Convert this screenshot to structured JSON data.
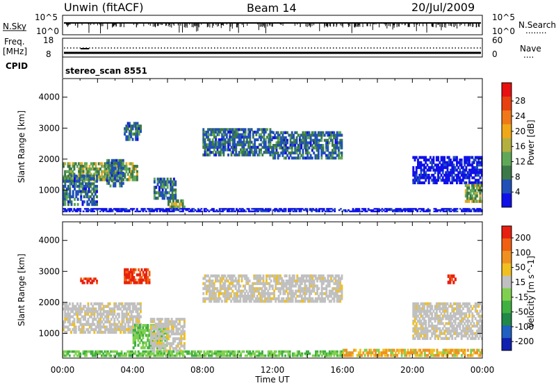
{
  "header": {
    "radar_title": "Unwin (fitACF)",
    "beam": "Beam 14",
    "date": "20/Jul/2009"
  },
  "info_panels": {
    "nsky_label": "N.Sky",
    "nsearch_label": "N.Search",
    "nsearch_marker": "........",
    "nsky_ticks": [
      "10^5",
      "10^0"
    ],
    "nsearch_ticks": [
      "10^5",
      "10^0"
    ],
    "freq_label_line1": "Freq.",
    "freq_label_line2": "[MHz]",
    "freq_ticks": [
      "18",
      "8"
    ],
    "nave_label": "Nave",
    "nave_marker": "....",
    "nave_ticks": [
      "60",
      "0"
    ],
    "cpid_label": "CPID",
    "cpid_value": "stereo_scan 8551"
  },
  "chart_data": [
    {
      "type": "heatmap",
      "panel": "power",
      "xlabel": "",
      "ylabel": "Slant Range [km]",
      "x_range_hours": [
        0,
        24
      ],
      "ylim": [
        200,
        4600
      ],
      "y_ticks": [
        1000,
        2000,
        3000,
        4000
      ],
      "grid": false,
      "colorbar": {
        "label": "Power [dB]",
        "ticks": [
          "4",
          "8",
          "12",
          "16",
          "20",
          "24",
          "28"
        ],
        "colors": [
          "#1010e8",
          "#2050b8",
          "#3c7848",
          "#60a858",
          "#b4b040",
          "#f0a818",
          "#f07818",
          "#e84010",
          "#e81010"
        ]
      },
      "bands": [
        {
          "start": 0.0,
          "end": 4.3,
          "from_km": 1300,
          "to_km": 1900,
          "level": 3
        },
        {
          "start": 0.0,
          "end": 2.0,
          "from_km": 500,
          "to_km": 1500,
          "level": 2
        },
        {
          "start": 2.5,
          "end": 3.5,
          "from_km": 1100,
          "to_km": 2000,
          "level": 2
        },
        {
          "start": 3.5,
          "end": 4.5,
          "from_km": 2600,
          "to_km": 3200,
          "level": 2
        },
        {
          "start": 5.2,
          "end": 6.5,
          "from_km": 700,
          "to_km": 1400,
          "level": 2
        },
        {
          "start": 6.0,
          "end": 7.0,
          "from_km": 400,
          "to_km": 700,
          "level": 3
        },
        {
          "start": 8.0,
          "end": 12.0,
          "from_km": 2100,
          "to_km": 3000,
          "level": 2
        },
        {
          "start": 12.0,
          "end": 16.0,
          "from_km": 2000,
          "to_km": 2900,
          "level": 2
        },
        {
          "start": 20.0,
          "end": 24.0,
          "from_km": 1200,
          "to_km": 2100,
          "level": 1
        },
        {
          "start": 23.0,
          "end": 24.0,
          "from_km": 600,
          "to_km": 1200,
          "level": 3
        },
        {
          "start": 0.0,
          "end": 24.0,
          "from_km": 300,
          "to_km": 420,
          "level": 1
        }
      ]
    },
    {
      "type": "heatmap",
      "panel": "velocity",
      "xlabel": "Time UT",
      "ylabel": "Slant Range [km]",
      "x_range_hours": [
        0,
        24
      ],
      "x_tick_labels": [
        "00:00",
        "04:00",
        "08:00",
        "12:00",
        "16:00",
        "20:00",
        "00:00"
      ],
      "ylim": [
        200,
        4600
      ],
      "y_ticks": [
        1000,
        2000,
        3000,
        4000
      ],
      "grid": false,
      "colorbar": {
        "label": "Velocity [m s^-1]",
        "ticks": [
          "200",
          "100",
          "50",
          "15",
          "-15",
          "-50",
          "-100",
          "-200"
        ],
        "colors": [
          "#1020b0",
          "#2060c0",
          "#208848",
          "#40b040",
          "#80d050",
          "#c0c0c0",
          "#f0c020",
          "#f09020",
          "#f06010",
          "#e82010"
        ]
      },
      "bands": [
        {
          "start": 0.0,
          "end": 4.5,
          "from_km": 1000,
          "to_km": 2000,
          "level": "grey"
        },
        {
          "start": 1.0,
          "end": 2.0,
          "from_km": 2600,
          "to_km": 2800,
          "level": "red"
        },
        {
          "start": 3.5,
          "end": 5.0,
          "from_km": 2600,
          "to_km": 3100,
          "level": "red"
        },
        {
          "start": 4.0,
          "end": 6.0,
          "from_km": 500,
          "to_km": 1300,
          "level": "green"
        },
        {
          "start": 5.0,
          "end": 7.0,
          "from_km": 400,
          "to_km": 1500,
          "level": "grey"
        },
        {
          "start": 8.0,
          "end": 16.0,
          "from_km": 2000,
          "to_km": 2900,
          "level": "grey"
        },
        {
          "start": 20.0,
          "end": 24.0,
          "from_km": 800,
          "to_km": 2000,
          "level": "grey"
        },
        {
          "start": 22.0,
          "end": 22.5,
          "from_km": 2600,
          "to_km": 2900,
          "level": "red"
        },
        {
          "start": 0.0,
          "end": 16.0,
          "from_km": 250,
          "to_km": 450,
          "level": "green"
        },
        {
          "start": 16.0,
          "end": 24.0,
          "from_km": 250,
          "to_km": 500,
          "level": "orange"
        }
      ]
    }
  ]
}
